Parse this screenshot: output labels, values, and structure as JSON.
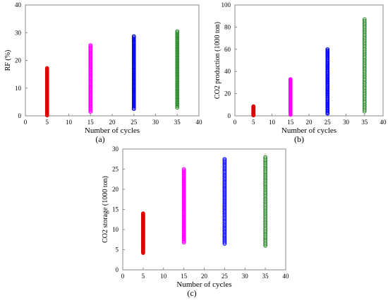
{
  "figure": {
    "panels": [
      "(a)",
      "(b)",
      "(c)"
    ]
  },
  "chart_data": [
    {
      "type": "scatter",
      "panel_label": "(a)",
      "title": "",
      "xlabel": "Number of cycles",
      "ylabel": "RF (%)",
      "xlim": [
        0,
        40
      ],
      "ylim": [
        0,
        40
      ],
      "xticks": [
        0,
        5,
        10,
        15,
        20,
        25,
        30,
        35,
        40
      ],
      "yticks": [
        0,
        10,
        20,
        30,
        40
      ],
      "grid": false,
      "series": [
        {
          "x": 5,
          "y_min": 0.2,
          "y_max": 17.2,
          "color": "#dd0000"
        },
        {
          "x": 15,
          "y_min": 1.5,
          "y_max": 25.5,
          "color": "#ff00ff"
        },
        {
          "x": 25,
          "y_min": 2.5,
          "y_max": 28.7,
          "color": "#0000ff"
        },
        {
          "x": 35,
          "y_min": 3.0,
          "y_max": 30.5,
          "color": "#2e8b2e"
        }
      ]
    },
    {
      "type": "scatter",
      "panel_label": "(b)",
      "title": "",
      "xlabel": "Number of cycles",
      "ylabel": "CO2 production (1000 ton)",
      "xlim": [
        0,
        40
      ],
      "ylim": [
        0,
        100
      ],
      "xticks": [
        0,
        5,
        10,
        15,
        20,
        25,
        30,
        35,
        40
      ],
      "yticks": [
        0,
        20,
        40,
        60,
        80,
        100
      ],
      "grid": false,
      "series": [
        {
          "x": 5,
          "y_min": 0.5,
          "y_max": 8.5,
          "color": "#dd0000"
        },
        {
          "x": 15,
          "y_min": 1.0,
          "y_max": 33.0,
          "color": "#ff00ff"
        },
        {
          "x": 25,
          "y_min": 2.0,
          "y_max": 60.0,
          "color": "#0000ff"
        },
        {
          "x": 35,
          "y_min": 4.0,
          "y_max": 87.0,
          "color": "#2e8b2e"
        }
      ]
    },
    {
      "type": "scatter",
      "panel_label": "(c)",
      "title": "",
      "xlabel": "Number of cycles",
      "ylabel": "CO2 storage (1000 ton)",
      "xlim": [
        0,
        40
      ],
      "ylim": [
        0,
        30
      ],
      "xticks": [
        0,
        5,
        10,
        15,
        20,
        25,
        30,
        35,
        40
      ],
      "yticks": [
        0,
        5,
        10,
        15,
        20,
        25,
        30
      ],
      "grid": false,
      "series": [
        {
          "x": 5,
          "y_min": 4.2,
          "y_max": 14.0,
          "color": "#dd0000"
        },
        {
          "x": 15,
          "y_min": 6.8,
          "y_max": 25.0,
          "color": "#ff00ff"
        },
        {
          "x": 25,
          "y_min": 6.5,
          "y_max": 27.5,
          "color": "#0000ff"
        },
        {
          "x": 35,
          "y_min": 6.0,
          "y_max": 28.0,
          "color": "#2e8b2e"
        }
      ]
    }
  ]
}
